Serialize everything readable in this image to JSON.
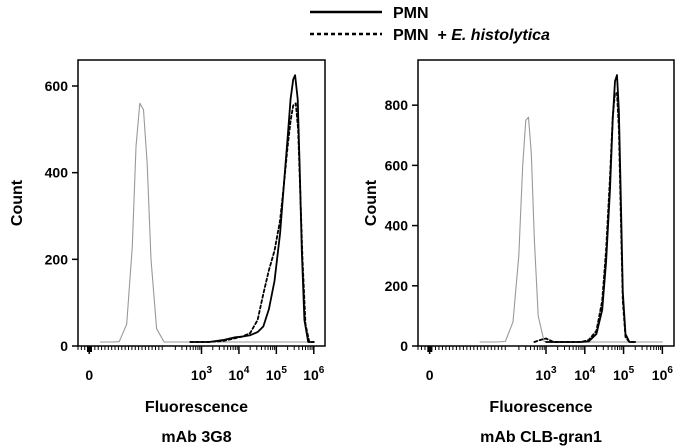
{
  "legend": [
    {
      "label": "PMN",
      "label_suffix": "",
      "style": "solid"
    },
    {
      "label": "PMN  + ",
      "label_suffix": "E. histolytica",
      "style": "dashed"
    }
  ],
  "chart_data": [
    {
      "type": "line",
      "xlabel": "Fluorescence",
      "ylabel": "Count",
      "caption": "mAb  3G8",
      "xscale": "biexponential",
      "xlim": [
        -0.3,
        6.3
      ],
      "ylim": [
        0,
        660
      ],
      "x_ticks": [
        {
          "value": 0,
          "base": "0",
          "exp": ""
        },
        {
          "value": 3,
          "base": "10",
          "exp": "3"
        },
        {
          "value": 4,
          "base": "10",
          "exp": "4"
        },
        {
          "value": 5,
          "base": "10",
          "exp": "5"
        },
        {
          "value": 6,
          "base": "10",
          "exp": "6"
        }
      ],
      "y_ticks": [
        0,
        200,
        400,
        600
      ],
      "series": [
        {
          "name": "",
          "role": "isotype control",
          "color": "#999999",
          "style": "solid",
          "x": [
            0.3,
            0.6,
            0.8,
            1.0,
            1.15,
            1.25,
            1.35,
            1.45,
            1.55,
            1.65,
            1.8,
            2.0,
            2.3,
            6.0
          ],
          "y": [
            0,
            2,
            10,
            50,
            230,
            460,
            560,
            545,
            420,
            200,
            40,
            5,
            0,
            0
          ]
        },
        {
          "name": "PMN",
          "role": "stained",
          "color": "#000000",
          "style": "solid",
          "x": [
            2.7,
            3.2,
            3.6,
            3.9,
            4.1,
            4.3,
            4.5,
            4.65,
            4.8,
            4.95,
            5.1,
            5.2,
            5.3,
            5.38,
            5.45,
            5.5,
            5.57,
            5.62,
            5.68,
            5.75,
            5.85,
            6.0
          ],
          "y": [
            0,
            6,
            14,
            20,
            22,
            25,
            32,
            45,
            85,
            150,
            260,
            370,
            480,
            570,
            615,
            625,
            570,
            420,
            220,
            60,
            5,
            0
          ]
        },
        {
          "name": "PMN + E. histolytica",
          "role": "stained",
          "color": "#000000",
          "style": "dashed",
          "x": [
            2.7,
            3.2,
            3.6,
            3.9,
            4.1,
            4.3,
            4.5,
            4.65,
            4.8,
            4.95,
            5.1,
            5.2,
            5.3,
            5.38,
            5.45,
            5.52,
            5.58,
            5.63,
            5.7,
            5.78,
            5.88,
            6.0
          ],
          "y": [
            0,
            5,
            12,
            18,
            22,
            30,
            60,
            120,
            175,
            220,
            290,
            370,
            460,
            520,
            555,
            560,
            500,
            380,
            200,
            50,
            5,
            0
          ]
        }
      ]
    },
    {
      "type": "line",
      "xlabel": "Fluorescence",
      "ylabel": "Count",
      "caption": "mAb CLB-gran1",
      "xscale": "biexponential",
      "xlim": [
        -0.3,
        6.3
      ],
      "ylim": [
        0,
        950
      ],
      "x_ticks": [
        {
          "value": 0,
          "base": "0",
          "exp": ""
        },
        {
          "value": 3,
          "base": "10",
          "exp": "3"
        },
        {
          "value": 4,
          "base": "10",
          "exp": "4"
        },
        {
          "value": 5,
          "base": "10",
          "exp": "5"
        },
        {
          "value": 6,
          "base": "10",
          "exp": "6"
        }
      ],
      "y_ticks": [
        0,
        200,
        400,
        600,
        800
      ],
      "series": [
        {
          "name": "",
          "role": "isotype control",
          "color": "#999999",
          "style": "solid",
          "x": [
            1.3,
            1.7,
            1.95,
            2.15,
            2.3,
            2.4,
            2.48,
            2.55,
            2.62,
            2.7,
            2.8,
            2.95,
            3.2,
            3.5,
            6.0
          ],
          "y": [
            0,
            3,
            15,
            80,
            300,
            600,
            750,
            760,
            640,
            350,
            100,
            15,
            2,
            0,
            0
          ]
        },
        {
          "name": "PMN",
          "role": "stained",
          "color": "#000000",
          "style": "solid",
          "x": [
            3.0,
            3.5,
            3.9,
            4.1,
            4.3,
            4.45,
            4.55,
            4.65,
            4.72,
            4.78,
            4.83,
            4.88,
            4.93,
            4.98,
            5.05,
            5.15,
            5.3
          ],
          "y": [
            0,
            3,
            8,
            15,
            40,
            120,
            280,
            520,
            750,
            880,
            900,
            780,
            480,
            180,
            40,
            5,
            0
          ]
        },
        {
          "name": "PMN + E. histolytica",
          "role": "stained",
          "color": "#000000",
          "style": "dashed",
          "x": [
            2.7,
            2.85,
            3.0,
            3.2,
            3.5,
            3.9,
            4.1,
            4.3,
            4.45,
            4.55,
            4.65,
            4.72,
            4.78,
            4.83,
            4.88,
            4.93,
            4.98,
            5.05,
            5.15,
            5.3
          ],
          "y": [
            0,
            20,
            25,
            8,
            3,
            8,
            20,
            50,
            150,
            320,
            560,
            760,
            840,
            840,
            720,
            420,
            150,
            30,
            3,
            0
          ]
        }
      ]
    }
  ]
}
